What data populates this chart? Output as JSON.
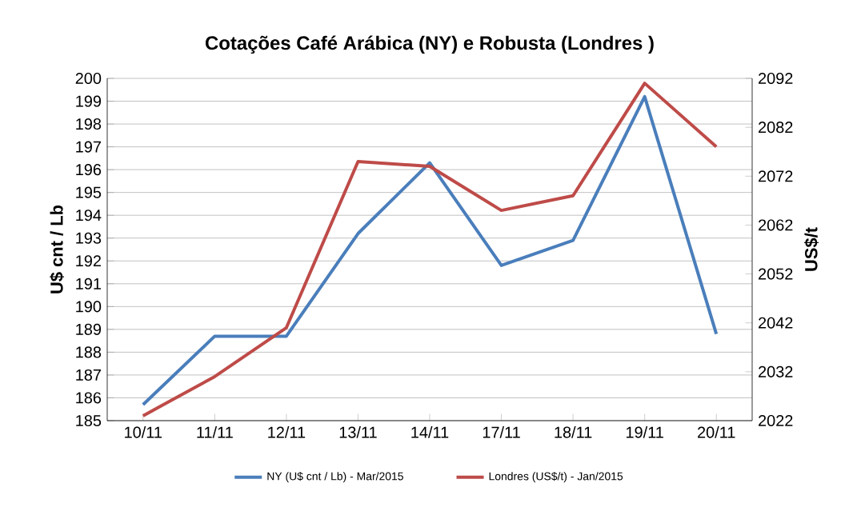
{
  "chart_data": {
    "type": "line",
    "title": "Cotações Café Arábica (NY) e Robusta (Londres )",
    "categories": [
      "10/11",
      "11/11",
      "12/11",
      "13/11",
      "14/11",
      "17/11",
      "18/11",
      "19/11",
      "20/11"
    ],
    "series": [
      {
        "name": "NY (U$ cnt / Lb) - Mar/2015",
        "color": "#4a7ebb",
        "values": [
          185.7,
          188.7,
          188.7,
          193.2,
          196.3,
          191.8,
          192.9,
          199.2,
          188.8
        ]
      },
      {
        "name": "Londres (US$/t) - Jan/2015",
        "color": "#be4b48",
        "axis": "y2",
        "values": [
          2023,
          2031,
          2041,
          2075,
          2074,
          2065,
          2068,
          2091,
          2078
        ]
      }
    ],
    "ylabel": "U$ cnt / Lb",
    "y2label": "US$/t",
    "ylim": [
      185,
      200
    ],
    "yticks": [
      185,
      186,
      187,
      188,
      189,
      190,
      191,
      192,
      193,
      194,
      195,
      196,
      197,
      198,
      199,
      200
    ],
    "y2lim": [
      2022,
      2092
    ],
    "y2ticks": [
      2022,
      2032,
      2042,
      2052,
      2062,
      2072,
      2082,
      2092
    ],
    "grid": "y",
    "legend": "bottom",
    "marker": "none",
    "line_style": "solid"
  }
}
